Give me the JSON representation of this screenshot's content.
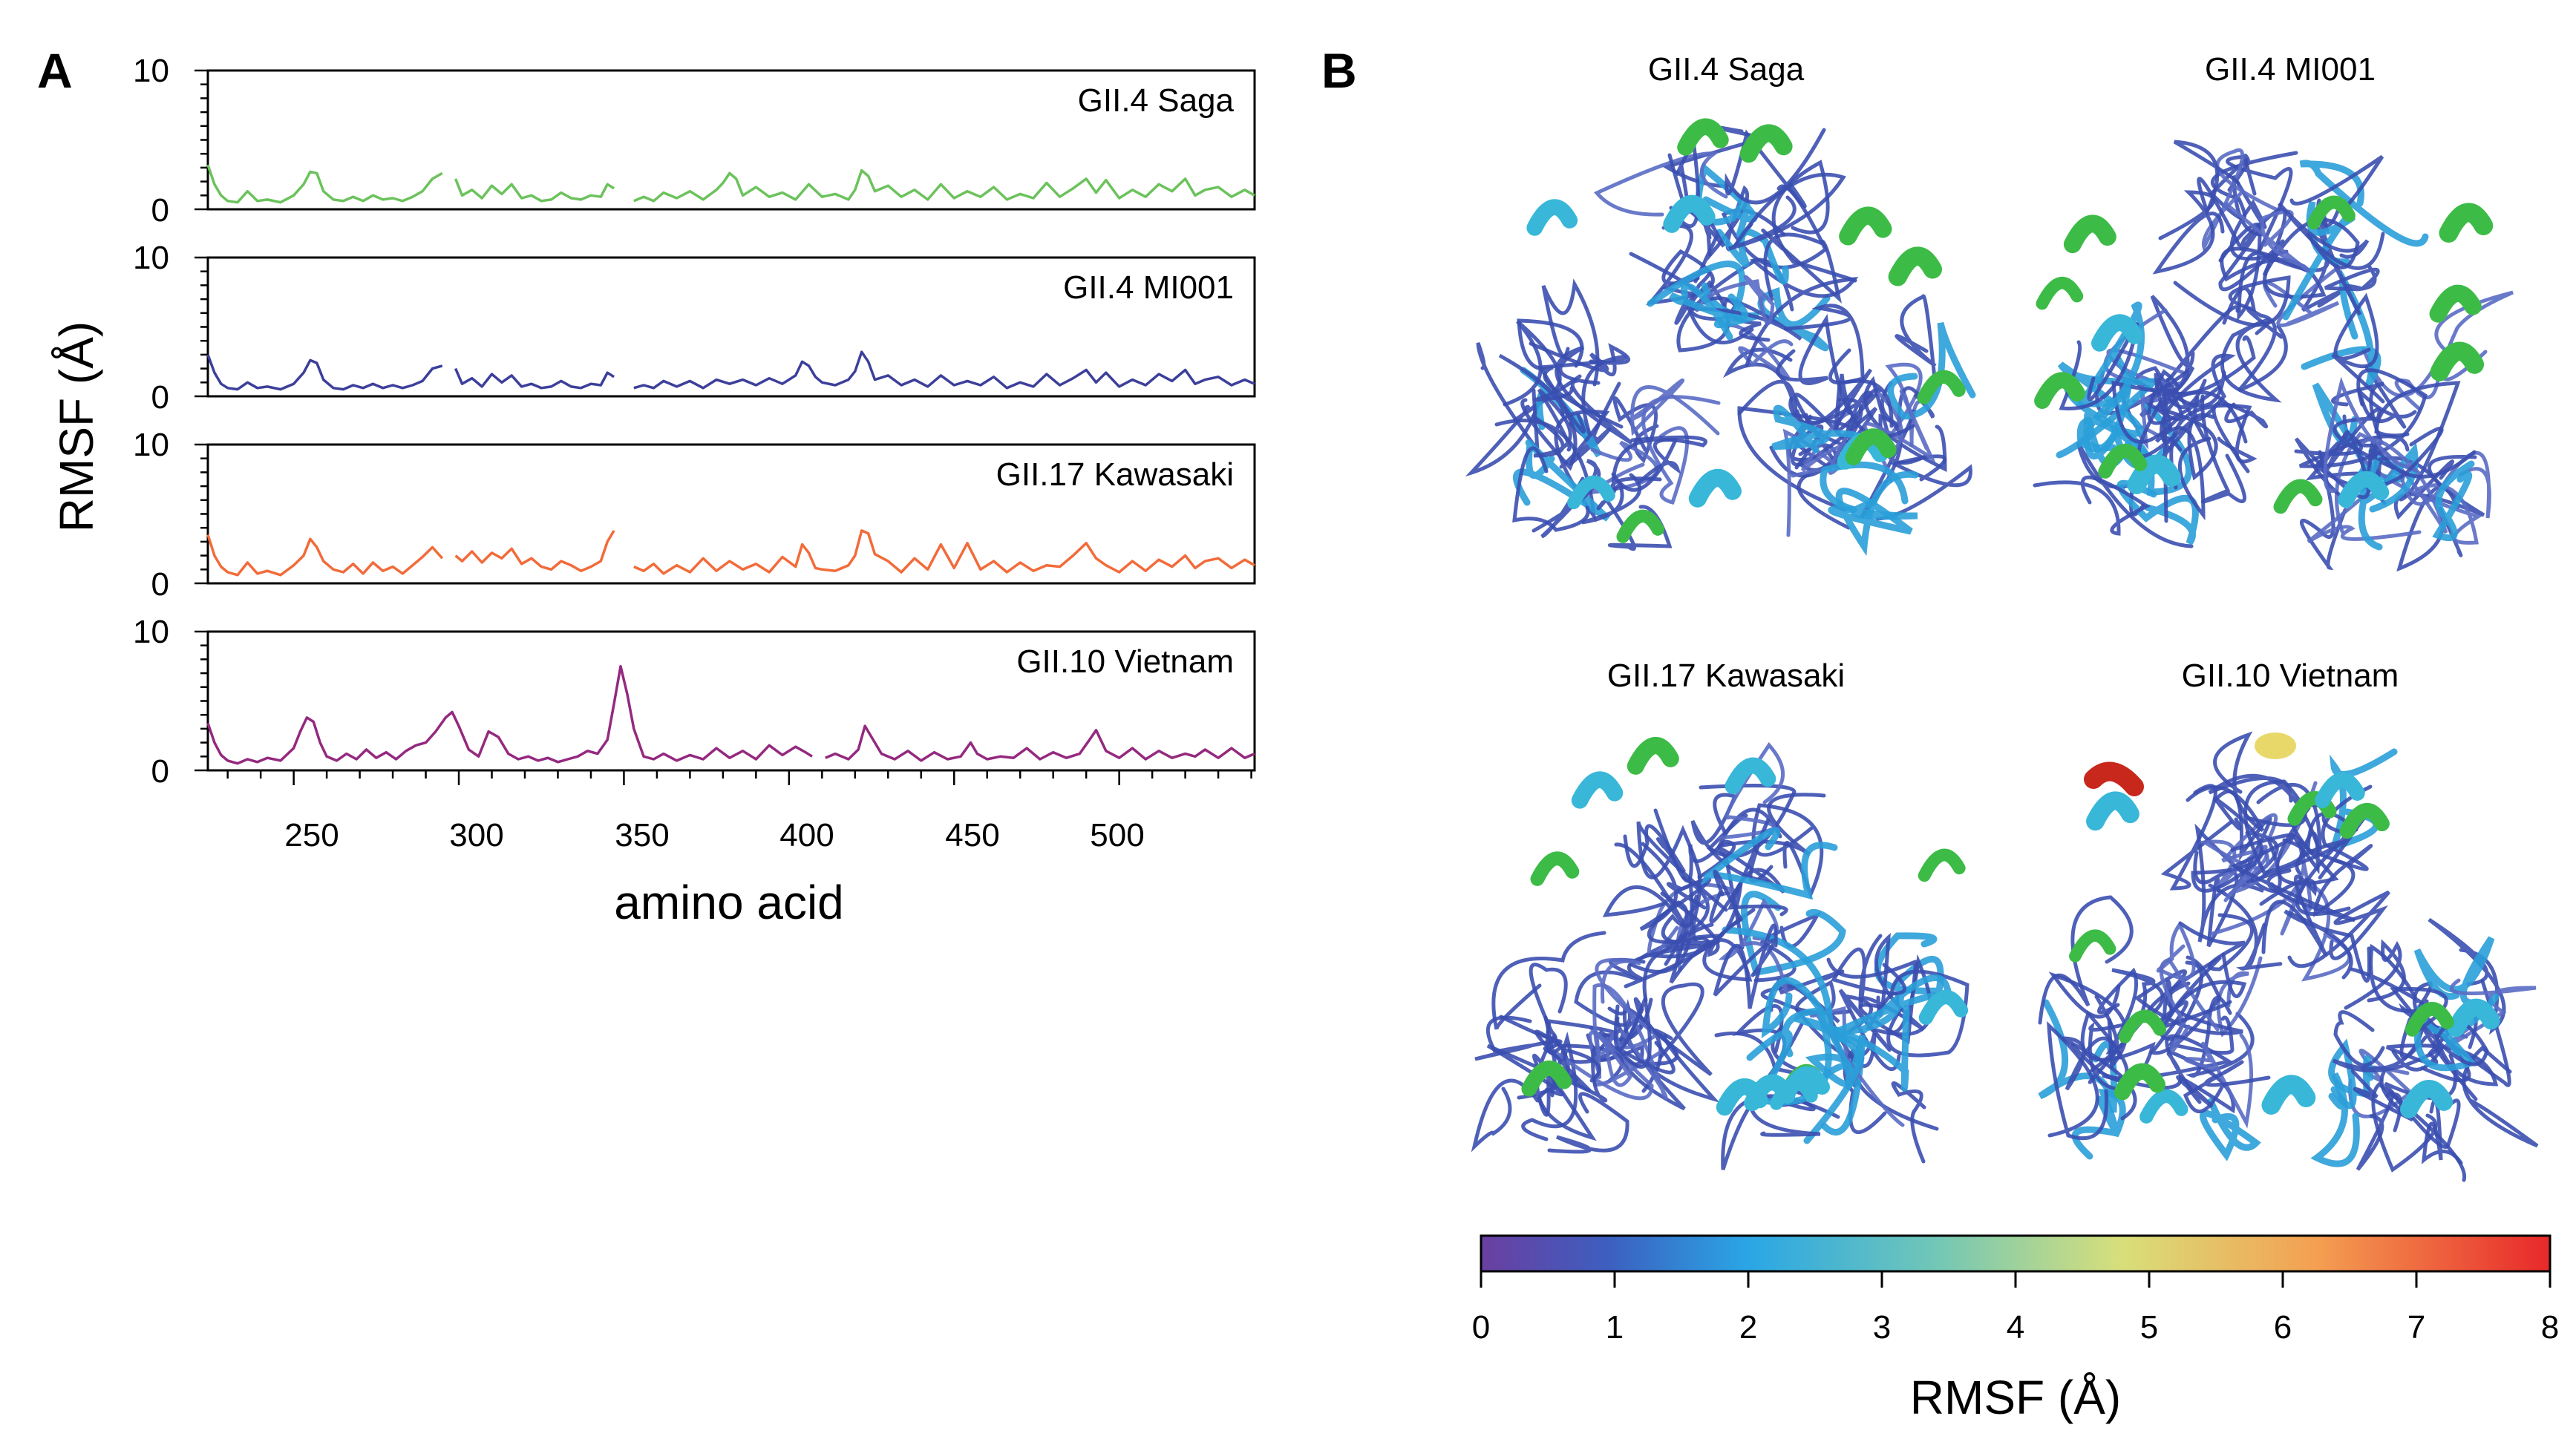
{
  "panel_a": {
    "letter": "A",
    "ylabel": "RMSF (Å)",
    "xlabel": "amino acid",
    "x_ticks": [
      "250",
      "300",
      "350",
      "400",
      "450",
      "500"
    ],
    "y_tick_top": "10",
    "y_tick_bottom": "0"
  },
  "panel_b": {
    "letter": "B",
    "structures": [
      {
        "title": "GII.4 Saga"
      },
      {
        "title": "GII.4 MI001"
      },
      {
        "title": "GII.17 Kawasaki"
      },
      {
        "title": "GII.10 Vietnam"
      }
    ],
    "colorbar": {
      "label": "RMSF (Å)",
      "ticks": [
        "0",
        "1",
        "2",
        "3",
        "4",
        "5",
        "6",
        "7",
        "8"
      ],
      "range": [
        0,
        8
      ],
      "colors": [
        "#6a3fa0",
        "#3c5fc0",
        "#2aa6e6",
        "#6fc6b8",
        "#d8df7a",
        "#f4a052",
        "#e8282a"
      ]
    }
  },
  "chart_data": {
    "type": "line",
    "xlim": [
      224,
      541
    ],
    "ylim": [
      0,
      10
    ],
    "grid": false,
    "series": [
      {
        "name": "GII.4 Saga",
        "color": "#6cc25c",
        "x": [
          224,
          226,
          228,
          230,
          233,
          236,
          239,
          242,
          246,
          250,
          253,
          255,
          257,
          259,
          262,
          265,
          268,
          271,
          274,
          277,
          280,
          283,
          286,
          289,
          292,
          295,
          null,
          299,
          301,
          304,
          307,
          310,
          313,
          316,
          319,
          322,
          325,
          328,
          331,
          334,
          337,
          340,
          343,
          345,
          347,
          null,
          353,
          356,
          359,
          362,
          366,
          370,
          374,
          378,
          380,
          382,
          384,
          386,
          390,
          394,
          398,
          402,
          406,
          410,
          414,
          418,
          420,
          422,
          424,
          426,
          430,
          434,
          438,
          442,
          446,
          450,
          454,
          458,
          462,
          466,
          470,
          474,
          478,
          482,
          486,
          490,
          493,
          496,
          500,
          504,
          508,
          512,
          516,
          520,
          523,
          526,
          530,
          534,
          538,
          541
        ],
        "y": [
          3.2,
          1.8,
          1.0,
          0.6,
          0.5,
          1.3,
          0.6,
          0.7,
          0.5,
          1.0,
          1.8,
          2.7,
          2.6,
          1.3,
          0.7,
          0.6,
          0.9,
          0.6,
          1.0,
          0.7,
          0.8,
          0.6,
          0.9,
          1.3,
          2.2,
          2.6,
          null,
          2.2,
          1.0,
          1.4,
          0.8,
          1.7,
          1.1,
          1.8,
          0.8,
          1.0,
          0.6,
          0.7,
          1.2,
          0.8,
          0.7,
          1.0,
          0.9,
          1.8,
          1.5,
          null,
          0.6,
          0.9,
          0.6,
          1.2,
          0.8,
          1.3,
          0.7,
          1.4,
          1.9,
          2.6,
          2.2,
          1.0,
          1.6,
          0.9,
          1.2,
          0.7,
          1.8,
          0.9,
          1.1,
          0.7,
          1.4,
          2.8,
          2.4,
          1.3,
          1.7,
          0.9,
          1.4,
          0.7,
          1.8,
          0.8,
          1.3,
          0.9,
          1.6,
          0.7,
          1.1,
          0.8,
          1.9,
          0.9,
          1.5,
          2.2,
          1.2,
          2.1,
          0.8,
          1.4,
          0.9,
          1.8,
          1.3,
          2.2,
          1.0,
          1.4,
          1.6,
          0.9,
          1.4,
          1.0
        ]
      },
      {
        "name": "GII.4 MI001",
        "color": "#3c3f9a",
        "x": [
          224,
          226,
          228,
          230,
          233,
          236,
          239,
          242,
          246,
          250,
          253,
          255,
          257,
          259,
          262,
          265,
          268,
          271,
          274,
          277,
          280,
          283,
          286,
          289,
          292,
          295,
          null,
          299,
          301,
          304,
          307,
          310,
          313,
          316,
          319,
          322,
          325,
          328,
          331,
          334,
          337,
          340,
          343,
          345,
          347,
          null,
          353,
          356,
          359,
          362,
          366,
          370,
          374,
          378,
          382,
          386,
          390,
          394,
          398,
          402,
          404,
          406,
          408,
          410,
          414,
          418,
          420,
          422,
          424,
          426,
          430,
          434,
          438,
          442,
          446,
          450,
          454,
          458,
          462,
          466,
          470,
          474,
          478,
          482,
          486,
          490,
          493,
          496,
          500,
          504,
          508,
          512,
          516,
          520,
          523,
          526,
          530,
          534,
          538,
          541
        ],
        "y": [
          3.0,
          1.7,
          0.9,
          0.6,
          0.5,
          1.0,
          0.6,
          0.7,
          0.5,
          0.9,
          1.7,
          2.6,
          2.4,
          1.2,
          0.6,
          0.5,
          0.8,
          0.6,
          0.9,
          0.6,
          0.8,
          0.6,
          0.8,
          1.1,
          2.0,
          2.2,
          null,
          2.0,
          0.9,
          1.3,
          0.7,
          1.6,
          1.0,
          1.5,
          0.7,
          0.9,
          0.6,
          0.7,
          1.1,
          0.7,
          0.6,
          0.9,
          0.8,
          1.7,
          1.4,
          null,
          0.6,
          0.8,
          0.6,
          1.1,
          0.7,
          1.1,
          0.6,
          1.2,
          0.9,
          1.2,
          0.8,
          1.3,
          0.9,
          1.5,
          2.5,
          2.2,
          1.4,
          1.0,
          0.8,
          1.2,
          1.8,
          3.2,
          2.5,
          1.2,
          1.5,
          0.8,
          1.2,
          0.7,
          1.5,
          0.8,
          1.1,
          0.8,
          1.4,
          0.6,
          1.0,
          0.7,
          1.6,
          0.8,
          1.3,
          1.9,
          1.0,
          1.7,
          0.7,
          1.2,
          0.8,
          1.6,
          1.1,
          1.9,
          0.9,
          1.2,
          1.4,
          0.8,
          1.2,
          0.9
        ]
      },
      {
        "name": "GII.17 Kawasaki",
        "color": "#f26b3a",
        "x": [
          224,
          226,
          228,
          230,
          233,
          236,
          239,
          242,
          246,
          250,
          253,
          255,
          257,
          259,
          262,
          265,
          268,
          271,
          274,
          277,
          280,
          283,
          286,
          289,
          292,
          295,
          null,
          299,
          301,
          304,
          307,
          310,
          313,
          316,
          319,
          322,
          325,
          328,
          331,
          334,
          337,
          340,
          343,
          345,
          347,
          null,
          353,
          356,
          359,
          362,
          366,
          370,
          374,
          378,
          382,
          386,
          390,
          394,
          398,
          402,
          404,
          406,
          408,
          410,
          414,
          418,
          420,
          422,
          424,
          426,
          430,
          434,
          438,
          442,
          446,
          450,
          454,
          458,
          462,
          466,
          470,
          474,
          478,
          482,
          486,
          490,
          493,
          496,
          500,
          504,
          508,
          512,
          516,
          520,
          523,
          526,
          530,
          534,
          538,
          541
        ],
        "y": [
          3.5,
          2.0,
          1.2,
          0.8,
          0.6,
          1.5,
          0.7,
          0.9,
          0.6,
          1.3,
          2.0,
          3.2,
          2.6,
          1.6,
          1.0,
          0.8,
          1.4,
          0.7,
          1.5,
          0.9,
          1.2,
          0.7,
          1.3,
          1.9,
          2.6,
          1.8,
          null,
          2.0,
          1.6,
          2.3,
          1.5,
          2.2,
          1.8,
          2.5,
          1.4,
          1.8,
          1.2,
          1.0,
          1.6,
          1.3,
          0.9,
          1.2,
          1.6,
          3.0,
          3.8,
          null,
          1.2,
          0.9,
          1.4,
          0.7,
          1.3,
          0.8,
          1.8,
          0.9,
          1.6,
          1.0,
          1.4,
          0.8,
          1.9,
          1.2,
          2.8,
          2.2,
          1.1,
          1.0,
          0.9,
          1.3,
          2.0,
          3.8,
          3.6,
          2.1,
          1.6,
          0.8,
          1.8,
          1.0,
          2.8,
          1.1,
          2.9,
          1.0,
          1.6,
          0.8,
          1.5,
          0.9,
          1.3,
          1.2,
          2.0,
          2.9,
          1.8,
          1.3,
          0.8,
          1.6,
          0.9,
          1.7,
          1.2,
          2.0,
          1.1,
          1.6,
          1.8,
          1.1,
          1.7,
          1.3
        ]
      },
      {
        "name": "GII.10 Vietnam",
        "color": "#94297f",
        "x": [
          224,
          226,
          228,
          230,
          233,
          236,
          239,
          242,
          246,
          250,
          252,
          254,
          256,
          258,
          260,
          263,
          266,
          269,
          272,
          275,
          278,
          281,
          284,
          287,
          290,
          293,
          296,
          298,
          300,
          303,
          306,
          309,
          312,
          315,
          318,
          321,
          324,
          327,
          330,
          333,
          336,
          339,
          342,
          345,
          347,
          349,
          351,
          353,
          356,
          359,
          362,
          366,
          370,
          374,
          378,
          382,
          386,
          390,
          394,
          398,
          402,
          405,
          407,
          null,
          411,
          414,
          418,
          421,
          423,
          425,
          428,
          432,
          436,
          440,
          444,
          448,
          452,
          455,
          457,
          460,
          464,
          468,
          472,
          476,
          480,
          484,
          488,
          491,
          493,
          496,
          500,
          504,
          508,
          512,
          516,
          520,
          523,
          526,
          530,
          534,
          538,
          541
        ],
        "y": [
          3.4,
          2.0,
          1.1,
          0.7,
          0.5,
          0.8,
          0.6,
          0.9,
          0.7,
          1.6,
          2.8,
          3.8,
          3.5,
          2.0,
          1.0,
          0.7,
          1.2,
          0.8,
          1.5,
          0.9,
          1.3,
          0.8,
          1.4,
          1.8,
          2.0,
          2.8,
          3.8,
          4.2,
          3.2,
          1.5,
          1.0,
          2.8,
          2.4,
          1.2,
          0.8,
          1.0,
          0.7,
          0.9,
          0.6,
          0.8,
          1.0,
          1.4,
          1.2,
          2.2,
          4.8,
          7.5,
          5.5,
          3.0,
          1.0,
          0.8,
          1.2,
          0.7,
          1.1,
          0.8,
          1.6,
          0.9,
          1.4,
          0.8,
          1.8,
          1.1,
          1.7,
          1.3,
          1.0,
          null,
          0.9,
          1.2,
          0.8,
          1.5,
          3.2,
          2.4,
          1.2,
          0.8,
          1.4,
          0.7,
          1.3,
          0.8,
          1.0,
          2.0,
          1.2,
          0.8,
          1.0,
          0.9,
          1.6,
          0.8,
          1.3,
          0.9,
          1.2,
          2.2,
          2.9,
          1.4,
          0.9,
          1.6,
          0.8,
          1.4,
          0.9,
          1.2,
          1.0,
          1.5,
          0.9,
          1.6,
          0.9,
          1.2
        ]
      }
    ]
  }
}
